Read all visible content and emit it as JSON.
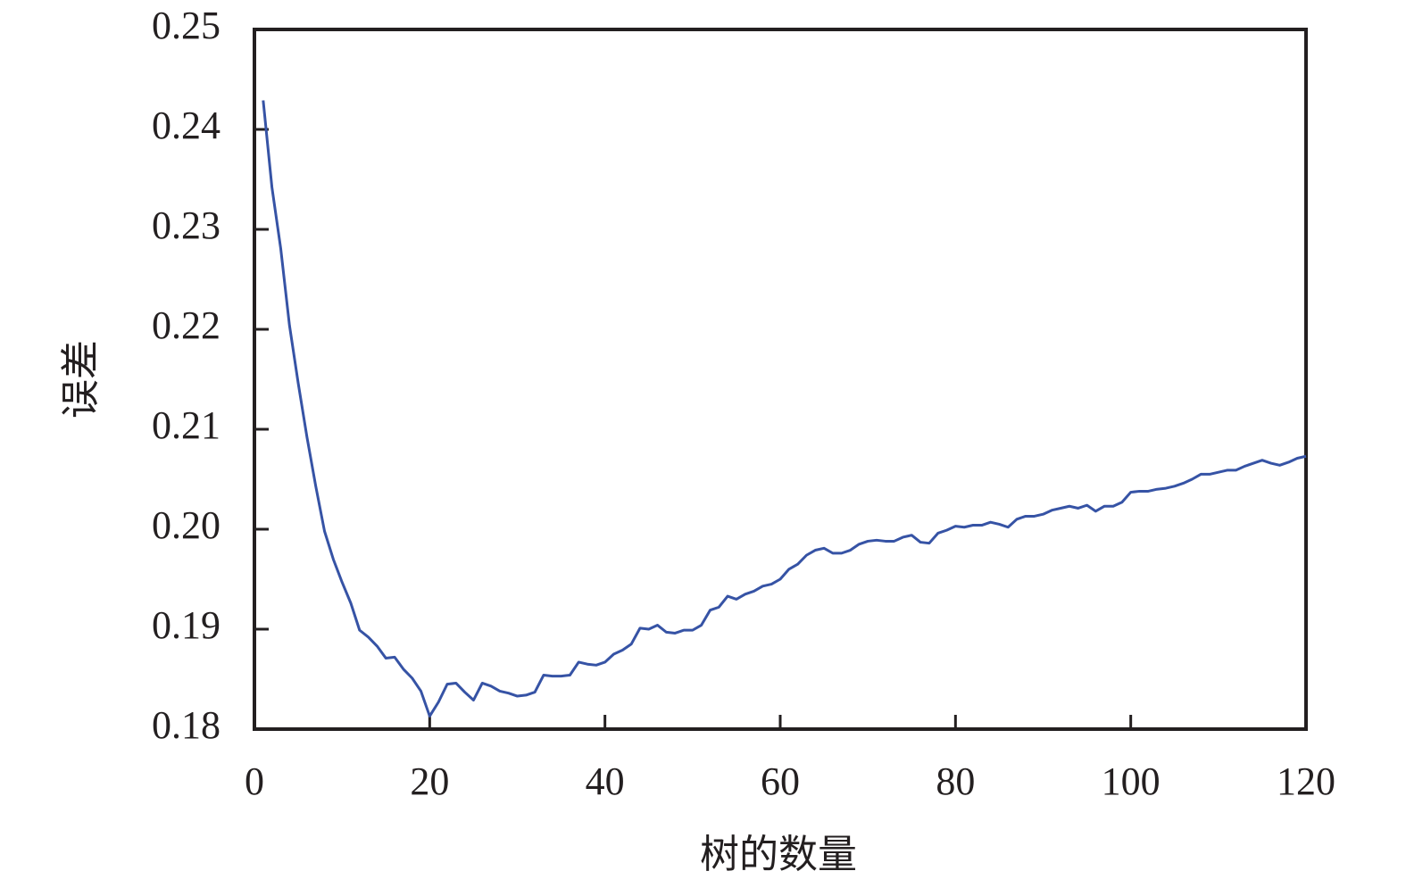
{
  "chart_data": {
    "type": "line",
    "x_label": "树的数量",
    "y_label": "误差",
    "x": [
      1,
      2,
      3,
      4,
      5,
      6,
      7,
      8,
      9,
      10,
      11,
      12,
      13,
      14,
      15,
      16,
      17,
      18,
      19,
      20,
      21,
      22,
      23,
      24,
      25,
      26,
      27,
      28,
      29,
      30,
      31,
      32,
      33,
      34,
      35,
      36,
      37,
      38,
      39,
      40,
      41,
      42,
      43,
      44,
      45,
      46,
      47,
      48,
      49,
      50,
      51,
      52,
      53,
      54,
      55,
      56,
      57,
      58,
      59,
      60,
      61,
      62,
      63,
      64,
      65,
      66,
      67,
      68,
      69,
      70,
      71,
      72,
      73,
      74,
      75,
      76,
      77,
      78,
      79,
      80,
      81,
      82,
      83,
      84,
      85,
      86,
      87,
      88,
      89,
      90,
      91,
      92,
      93,
      94,
      95,
      96,
      97,
      98,
      99,
      100,
      101,
      102,
      103,
      104,
      105,
      106,
      107,
      108,
      109,
      110,
      111,
      112,
      113,
      114,
      115,
      116,
      117,
      118,
      119,
      120
    ],
    "series": [
      {
        "color": "#3653a5",
        "values": [
          0.2429,
          0.2342,
          0.2281,
          0.2204,
          0.2146,
          0.2092,
          0.2043,
          0.1998,
          0.197,
          0.1947,
          0.1926,
          0.1899,
          0.1892,
          0.1883,
          0.1871,
          0.1872,
          0.186,
          0.1851,
          0.1838,
          0.1813,
          0.1827,
          0.1845,
          0.1846,
          0.1837,
          0.1829,
          0.1846,
          0.1843,
          0.1838,
          0.1836,
          0.1833,
          0.1834,
          0.1837,
          0.1854,
          0.1853,
          0.1853,
          0.1854,
          0.1867,
          0.1865,
          0.1864,
          0.1867,
          0.1875,
          0.1879,
          0.1885,
          0.1901,
          0.19,
          0.1904,
          0.1897,
          0.1896,
          0.1899,
          0.1899,
          0.1904,
          0.1919,
          0.1922,
          0.1933,
          0.193,
          0.1935,
          0.1938,
          0.1943,
          0.1945,
          0.195,
          0.196,
          0.1965,
          0.1974,
          0.1979,
          0.1981,
          0.1976,
          0.1976,
          0.1979,
          0.1985,
          0.1988,
          0.1989,
          0.1988,
          0.1988,
          0.1992,
          0.1994,
          0.1987,
          0.1986,
          0.1996,
          0.1999,
          0.2003,
          0.2002,
          0.2004,
          0.2004,
          0.2007,
          0.2005,
          0.2002,
          0.201,
          0.2013,
          0.2013,
          0.2015,
          0.2019,
          0.2021,
          0.2023,
          0.2021,
          0.2024,
          0.2018,
          0.2023,
          0.2023,
          0.2027,
          0.2037,
          0.2038,
          0.2038,
          0.204,
          0.2041,
          0.2043,
          0.2046,
          0.205,
          0.2055,
          0.2055,
          0.2057,
          0.2059,
          0.2059,
          0.2063,
          0.2066,
          0.2069,
          0.2066,
          0.2064,
          0.2067,
          0.2071,
          0.2073
        ]
      }
    ],
    "xlim": [
      0,
      120
    ],
    "xticks": [
      0,
      20,
      40,
      60,
      80,
      100,
      120
    ],
    "ylim": [
      0.18,
      0.25
    ],
    "yticks": [
      0.18,
      0.19,
      {
        "value": 0.2,
        "label": "0.20"
      },
      0.21,
      0.22,
      0.23,
      0.24,
      0.25
    ],
    "grid": false
  }
}
